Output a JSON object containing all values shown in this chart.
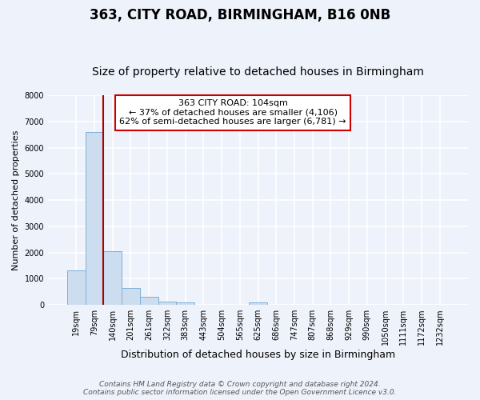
{
  "title": "363, CITY ROAD, BIRMINGHAM, B16 0NB",
  "subtitle": "Size of property relative to detached houses in Birmingham",
  "xlabel": "Distribution of detached houses by size in Birmingham",
  "ylabel": "Number of detached properties",
  "bin_labels": [
    "19sqm",
    "79sqm",
    "140sqm",
    "201sqm",
    "261sqm",
    "322sqm",
    "383sqm",
    "443sqm",
    "504sqm",
    "565sqm",
    "625sqm",
    "686sqm",
    "747sqm",
    "807sqm",
    "868sqm",
    "929sqm",
    "990sqm",
    "1050sqm",
    "1111sqm",
    "1172sqm",
    "1232sqm"
  ],
  "bar_values": [
    1300,
    6600,
    2050,
    650,
    300,
    130,
    100,
    0,
    0,
    0,
    100,
    0,
    0,
    0,
    0,
    0,
    0,
    0,
    0,
    0,
    0
  ],
  "bar_color": "#ccddf0",
  "bar_edge_color": "#7fb0d8",
  "vline_color": "#aa0000",
  "vline_x": 1.5,
  "annotation_title": "363 CITY ROAD: 104sqm",
  "annotation_line1": "← 37% of detached houses are smaller (4,106)",
  "annotation_line2": "62% of semi-detached houses are larger (6,781) →",
  "annotation_box_facecolor": "#ffffff",
  "annotation_box_edgecolor": "#cc0000",
  "ylim": [
    0,
    8000
  ],
  "yticks": [
    0,
    1000,
    2000,
    3000,
    4000,
    5000,
    6000,
    7000,
    8000
  ],
  "footer_line1": "Contains HM Land Registry data © Crown copyright and database right 2024.",
  "footer_line2": "Contains public sector information licensed under the Open Government Licence v3.0.",
  "bg_color": "#eef2fb",
  "grid_color": "#ffffff",
  "title_fontsize": 12,
  "subtitle_fontsize": 10,
  "ylabel_fontsize": 8,
  "xlabel_fontsize": 9,
  "tick_fontsize": 7,
  "footer_fontsize": 6.5
}
